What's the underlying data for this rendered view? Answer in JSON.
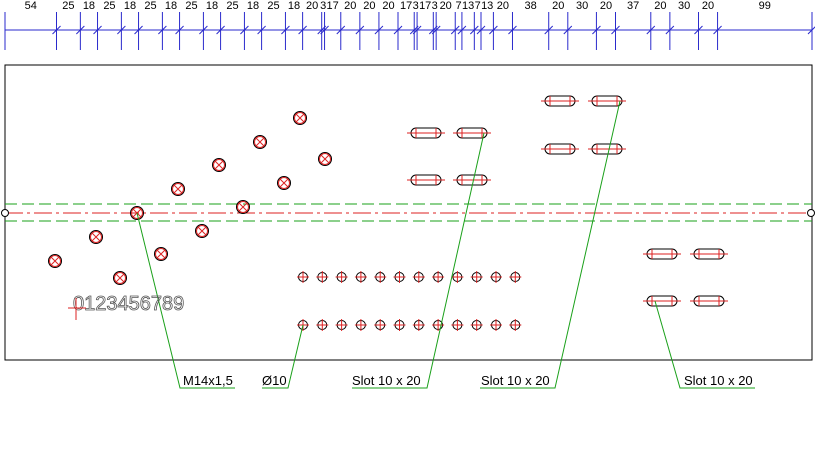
{
  "dimensions": [
    54,
    25,
    18,
    25,
    18,
    25,
    18,
    25,
    18,
    25,
    18,
    25,
    18,
    20,
    3,
    17,
    20,
    20,
    20,
    17,
    3,
    17,
    3,
    20,
    7,
    13,
    7,
    13,
    20,
    38,
    20,
    30,
    20,
    37,
    20,
    30,
    20,
    99
  ],
  "engraving": "0123456789",
  "annotations": [
    "M14x1,5",
    "Ø10",
    "Slot 10 x 20",
    "Slot 10 x 20",
    "Slot 10 x 20"
  ]
}
